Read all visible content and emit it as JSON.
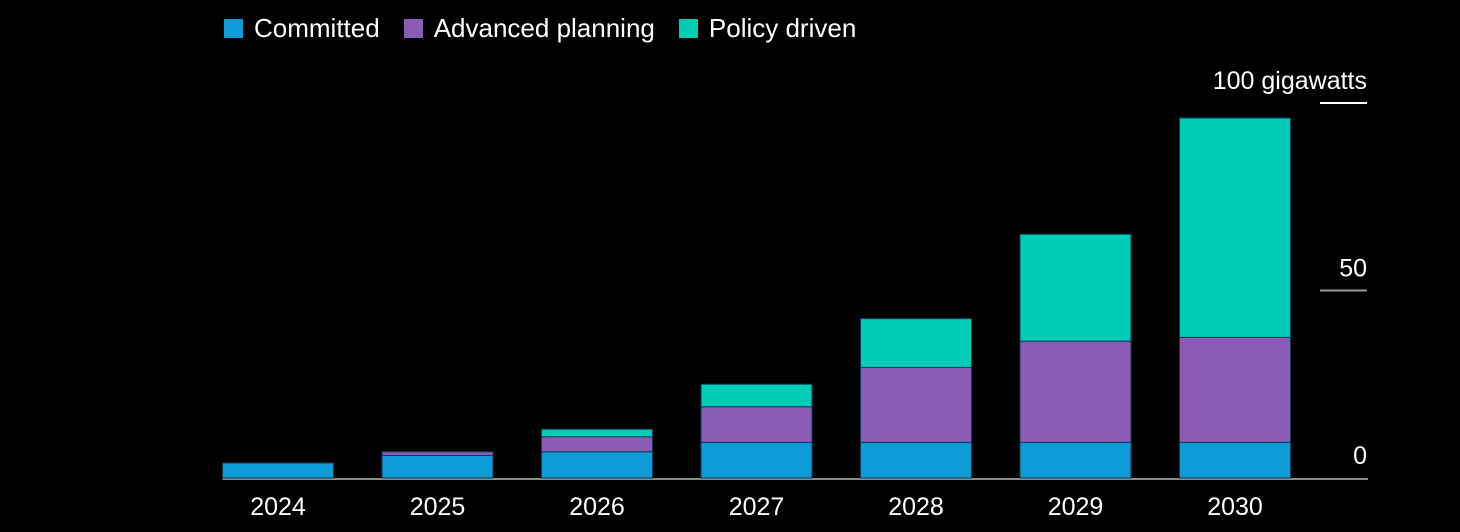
{
  "chart_data": {
    "type": "bar",
    "stacked": true,
    "categories": [
      "2024",
      "2025",
      "2026",
      "2027",
      "2028",
      "2029",
      "2030"
    ],
    "series": [
      {
        "name": "Committed",
        "color": "#0f9bd7",
        "values": [
          4,
          6,
          7,
          9.5,
          9.5,
          9.5,
          9.5
        ]
      },
      {
        "name": "Advanced planning",
        "color": "#8a5cb5",
        "values": [
          0,
          1,
          4,
          9.5,
          20,
          27,
          28
        ]
      },
      {
        "name": "Policy driven",
        "color": "#00cdb5",
        "values": [
          0,
          0,
          2,
          6,
          13,
          28.5,
          58.5
        ]
      }
    ],
    "y_axis": {
      "range": [
        0,
        100
      ],
      "ticks": [
        {
          "value": 0,
          "label": "0"
        },
        {
          "value": 50,
          "label": "50"
        },
        {
          "value": 100,
          "label": "100 gigawatts"
        }
      ],
      "position": "right"
    },
    "legend_position": "top-left",
    "grid": false
  }
}
